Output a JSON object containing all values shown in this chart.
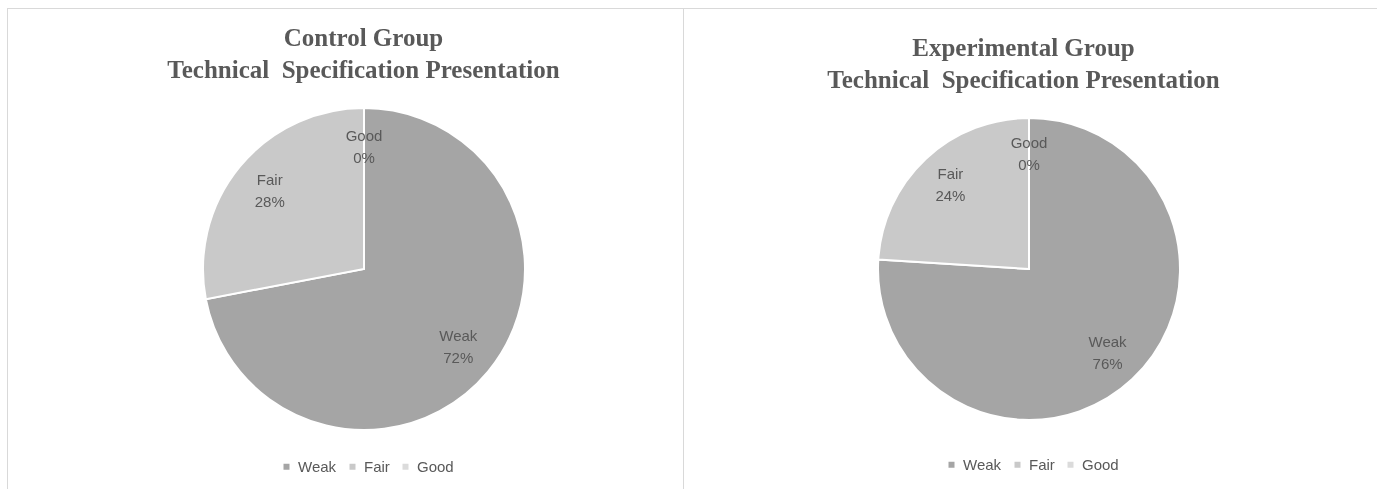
{
  "chart_data": [
    {
      "type": "pie",
      "title": "Control Group\nTechnical  Specification Presentation",
      "categories": [
        "Weak",
        "Fair",
        "Good"
      ],
      "values": [
        72,
        28,
        0
      ],
      "colors": [
        "#a5a5a5",
        "#c9c9c9",
        "#dbdbdb"
      ],
      "value_labels": [
        "72%",
        "28%",
        "0%"
      ],
      "legend": "bottom"
    },
    {
      "type": "pie",
      "title": "Experimental Group\nTechnical  Specification Presentation",
      "categories": [
        "Weak",
        "Fair",
        "Good"
      ],
      "values": [
        76,
        24,
        0
      ],
      "colors": [
        "#a5a5a5",
        "#c9c9c9",
        "#dbdbdb"
      ],
      "value_labels": [
        "76%",
        "24%",
        "0%"
      ],
      "legend": "bottom"
    }
  ]
}
